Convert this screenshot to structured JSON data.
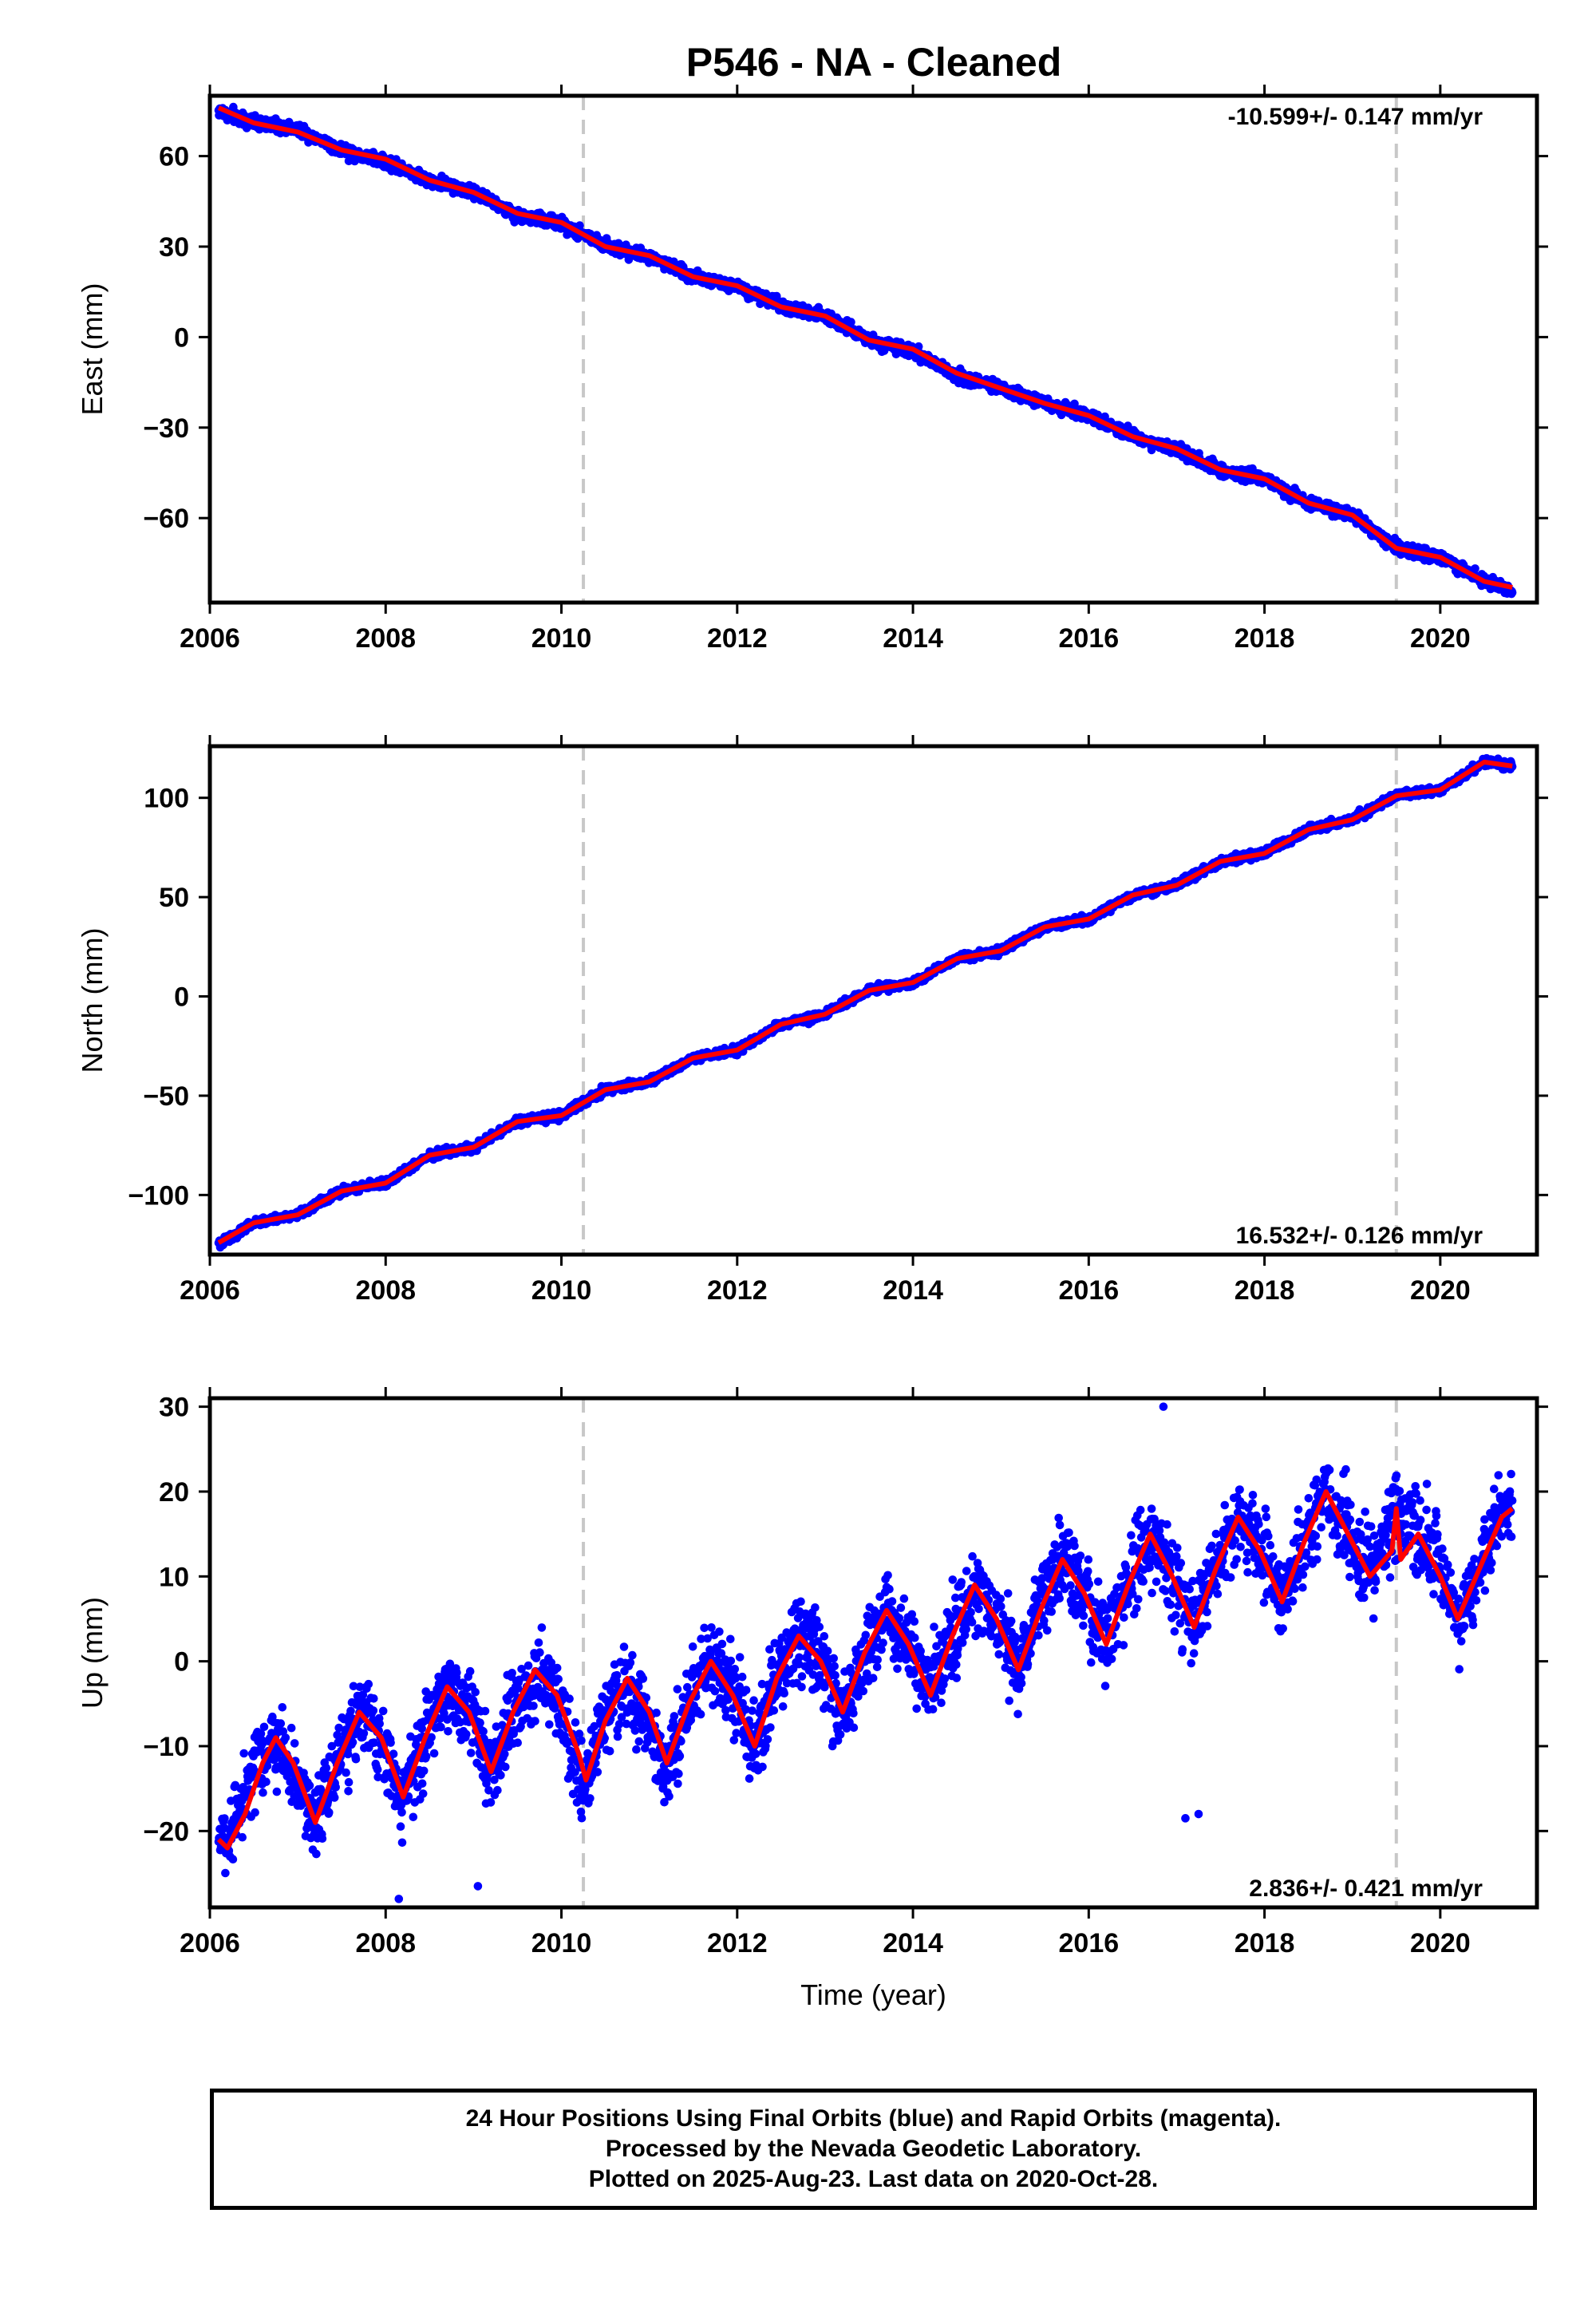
{
  "title": "P546  - NA - Cleaned",
  "colors": {
    "final_orbits": "#0000ff",
    "model": "#ff0000",
    "event_line": "#c8c8c8",
    "frame": "#000000"
  },
  "chart_data": [
    {
      "type": "scatter",
      "component": "East",
      "ylabel": "East (mm)",
      "xlabel": "",
      "rate_label": "-10.599+/- 0.147 mm/yr",
      "xlim": [
        2006.0,
        2021.1
      ],
      "ylim": [
        -88,
        80
      ],
      "xticks": [
        2006,
        2008,
        2010,
        2012,
        2014,
        2016,
        2018,
        2020
      ],
      "yticks": [
        60,
        30,
        0,
        -30,
        -60
      ],
      "event_lines": [
        2010.25,
        2019.5
      ],
      "series": [
        {
          "role": "final_orbits",
          "x": [
            2006.1,
            2006.5,
            2007.0,
            2007.5,
            2008.0,
            2008.5,
            2009.0,
            2009.5,
            2010.0,
            2010.5,
            2011.0,
            2011.5,
            2012.0,
            2012.5,
            2013.0,
            2013.5,
            2014.0,
            2014.5,
            2015.0,
            2015.5,
            2016.0,
            2016.5,
            2017.0,
            2017.5,
            2018.0,
            2018.5,
            2019.0,
            2019.5,
            2020.0,
            2020.5,
            2020.82
          ],
          "y": [
            75,
            71,
            69,
            62,
            58,
            52,
            48,
            40,
            38,
            30,
            27,
            20,
            17,
            10,
            7,
            -1,
            -5,
            -13,
            -17,
            -22,
            -26,
            -33,
            -37,
            -44,
            -47,
            -55,
            -59,
            -70,
            -73,
            -81,
            -84
          ]
        },
        {
          "role": "model",
          "x": [
            2006.1,
            2006.5,
            2007.0,
            2007.5,
            2008.0,
            2008.5,
            2009.0,
            2009.5,
            2010.0,
            2010.5,
            2011.0,
            2011.5,
            2012.0,
            2012.5,
            2013.0,
            2013.5,
            2014.0,
            2014.5,
            2015.0,
            2015.5,
            2016.0,
            2016.5,
            2017.0,
            2017.5,
            2018.0,
            2018.5,
            2019.0,
            2019.5,
            2020.0,
            2020.5,
            2020.82
          ],
          "y": [
            76,
            71,
            68,
            62,
            59,
            52,
            48,
            41,
            38,
            30,
            27,
            20,
            17,
            10,
            7,
            -1,
            -4,
            -12,
            -17,
            -22,
            -26,
            -33,
            -37,
            -44,
            -47,
            -55,
            -59,
            -70,
            -73,
            -81,
            -83
          ]
        }
      ]
    },
    {
      "type": "scatter",
      "component": "North",
      "ylabel": "North (mm)",
      "xlabel": "",
      "rate_label": "16.532+/- 0.126 mm/yr",
      "xlim": [
        2006.0,
        2021.1
      ],
      "ylim": [
        -130,
        126
      ],
      "xticks": [
        2006,
        2008,
        2010,
        2012,
        2014,
        2016,
        2018,
        2020
      ],
      "yticks": [
        100,
        50,
        0,
        -50,
        -100
      ],
      "event_lines": [
        2010.25,
        2019.5
      ],
      "series": [
        {
          "role": "final_orbits",
          "x": [
            2006.1,
            2006.5,
            2007.0,
            2007.5,
            2008.0,
            2008.5,
            2009.0,
            2009.5,
            2010.0,
            2010.5,
            2011.0,
            2011.5,
            2012.0,
            2012.5,
            2013.0,
            2013.5,
            2014.0,
            2014.5,
            2015.0,
            2015.5,
            2016.0,
            2016.5,
            2017.0,
            2017.5,
            2018.0,
            2018.5,
            2019.0,
            2019.5,
            2020.0,
            2020.5,
            2020.82
          ],
          "y": [
            -125,
            -114,
            -110,
            -98,
            -94,
            -80,
            -76,
            -63,
            -60,
            -47,
            -43,
            -31,
            -27,
            -14,
            -9,
            3,
            7,
            19,
            23,
            35,
            39,
            51,
            56,
            68,
            72,
            84,
            89,
            101,
            104,
            118,
            116
          ]
        },
        {
          "role": "model",
          "x": [
            2006.1,
            2006.5,
            2007.0,
            2007.5,
            2008.0,
            2008.5,
            2009.0,
            2009.5,
            2010.0,
            2010.5,
            2011.0,
            2011.5,
            2012.0,
            2012.5,
            2013.0,
            2013.5,
            2014.0,
            2014.5,
            2015.0,
            2015.5,
            2016.0,
            2016.5,
            2017.0,
            2017.5,
            2018.0,
            2018.5,
            2019.0,
            2019.5,
            2020.0,
            2020.5,
            2020.82
          ],
          "y": [
            -124,
            -114,
            -110,
            -98,
            -94,
            -80,
            -76,
            -63,
            -60,
            -47,
            -43,
            -31,
            -27,
            -14,
            -9,
            3,
            7,
            19,
            23,
            35,
            39,
            51,
            56,
            68,
            72,
            84,
            89,
            101,
            104,
            118,
            116
          ]
        }
      ]
    },
    {
      "type": "scatter",
      "component": "Up",
      "ylabel": "Up (mm)",
      "xlabel": "Time (year)",
      "rate_label": "2.836+/- 0.421 mm/yr",
      "xlim": [
        2006.0,
        2021.1
      ],
      "ylim": [
        -29,
        31
      ],
      "xticks": [
        2006,
        2008,
        2010,
        2012,
        2014,
        2016,
        2018,
        2020
      ],
      "yticks": [
        30,
        20,
        10,
        0,
        -10,
        -20
      ],
      "event_lines": [
        2010.25,
        2019.5
      ],
      "series": [
        {
          "role": "final_orbits",
          "x": [
            2006.1,
            2006.3,
            2006.5,
            2006.7,
            2006.9,
            2007.2,
            2007.45,
            2007.7,
            2007.95,
            2008.2,
            2008.45,
            2008.7,
            2008.95,
            2009.2,
            2009.45,
            2009.7,
            2009.95,
            2010.25,
            2010.5,
            2010.75,
            2011.0,
            2011.2,
            2011.45,
            2011.7,
            2011.95,
            2012.2,
            2012.45,
            2012.7,
            2012.95,
            2013.2,
            2013.45,
            2013.7,
            2013.95,
            2014.2,
            2014.45,
            2014.7,
            2014.95,
            2015.2,
            2015.45,
            2015.7,
            2015.95,
            2016.2,
            2016.45,
            2016.7,
            2016.95,
            2017.2,
            2017.45,
            2017.7,
            2017.95,
            2018.2,
            2018.45,
            2018.7,
            2018.95,
            2019.2,
            2019.5,
            2019.75,
            2020.0,
            2020.2,
            2020.45,
            2020.7,
            2020.82
          ],
          "y": [
            -21,
            -19,
            -13,
            -9,
            -12,
            -19,
            -12,
            -6,
            -9,
            -16,
            -9,
            -3,
            -6,
            -13,
            -6,
            -1,
            -4,
            -15,
            -7,
            -2,
            -8,
            -13,
            -5,
            0,
            -4,
            -10,
            -2,
            3,
            0,
            -7,
            1,
            6,
            2,
            -4,
            3,
            9,
            5,
            -1,
            7,
            12,
            8,
            2,
            9,
            15,
            10,
            4,
            11,
            17,
            13,
            7,
            14,
            20,
            15,
            10,
            17,
            15,
            11,
            5,
            11,
            18,
            17
          ]
        },
        {
          "role": "model",
          "x": [
            2006.1,
            2006.2,
            2006.4,
            2006.6,
            2006.75,
            2006.95,
            2007.2,
            2007.45,
            2007.7,
            2007.95,
            2008.2,
            2008.45,
            2008.7,
            2008.95,
            2009.2,
            2009.45,
            2009.7,
            2009.95,
            2010.2,
            2010.28,
            2010.5,
            2010.75,
            2011.0,
            2011.2,
            2011.45,
            2011.7,
            2011.95,
            2012.2,
            2012.45,
            2012.7,
            2012.95,
            2013.2,
            2013.45,
            2013.7,
            2013.95,
            2014.2,
            2014.45,
            2014.7,
            2014.95,
            2015.2,
            2015.45,
            2015.7,
            2015.95,
            2016.2,
            2016.45,
            2016.7,
            2016.95,
            2017.2,
            2017.45,
            2017.7,
            2017.95,
            2018.2,
            2018.45,
            2018.7,
            2018.95,
            2019.2,
            2019.45,
            2019.5,
            2019.55,
            2019.75,
            2020.0,
            2020.2,
            2020.45,
            2020.7,
            2020.82
          ],
          "y": [
            -21,
            -22,
            -18,
            -12,
            -9,
            -12,
            -19,
            -12,
            -6,
            -9,
            -16,
            -9,
            -3,
            -6,
            -13,
            -6,
            -1,
            -4,
            -11,
            -14,
            -7,
            -2,
            -6,
            -12,
            -5,
            0,
            -4,
            -10,
            -2,
            3,
            0,
            -6,
            1,
            6,
            2,
            -4,
            3,
            9,
            5,
            -1,
            6,
            12,
            8,
            2,
            9,
            15,
            10,
            4,
            11,
            17,
            13,
            7,
            14,
            20,
            15,
            10,
            13,
            18,
            12,
            15,
            10,
            5,
            11,
            17,
            18
          ]
        }
      ]
    }
  ],
  "footer": {
    "line1": "24 Hour Positions Using Final Orbits (blue) and Rapid Orbits (magenta).",
    "line2": "Processed by the Nevada Geodetic Laboratory.",
    "line3": "Plotted on 2025-Aug-23. Last data on 2020-Oct-28."
  }
}
